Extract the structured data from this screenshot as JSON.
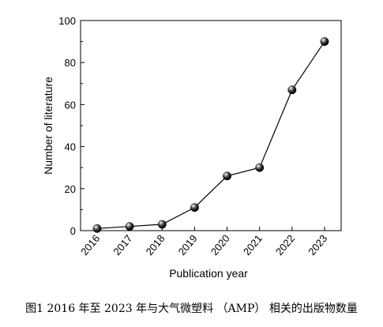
{
  "chart_data": {
    "type": "line",
    "categories": [
      "2016",
      "2017",
      "2018",
      "2019",
      "2020",
      "2021",
      "2022",
      "2023"
    ],
    "series": [
      {
        "values": [
          1,
          2,
          3,
          11,
          26,
          30,
          67,
          90
        ]
      }
    ],
    "xlabel": "Publication year",
    "ylabel": "Number of literature",
    "ylim": [
      0,
      100
    ],
    "yticks": [
      "0",
      "20",
      "40",
      "60",
      "80",
      "100"
    ],
    "line_color": "#000000",
    "marker": "black-sphere",
    "grid": false,
    "legend": "none"
  },
  "caption": "图1 2016 年至 2023 年与大气微塑料 （AMP） 相关的出版物数量"
}
